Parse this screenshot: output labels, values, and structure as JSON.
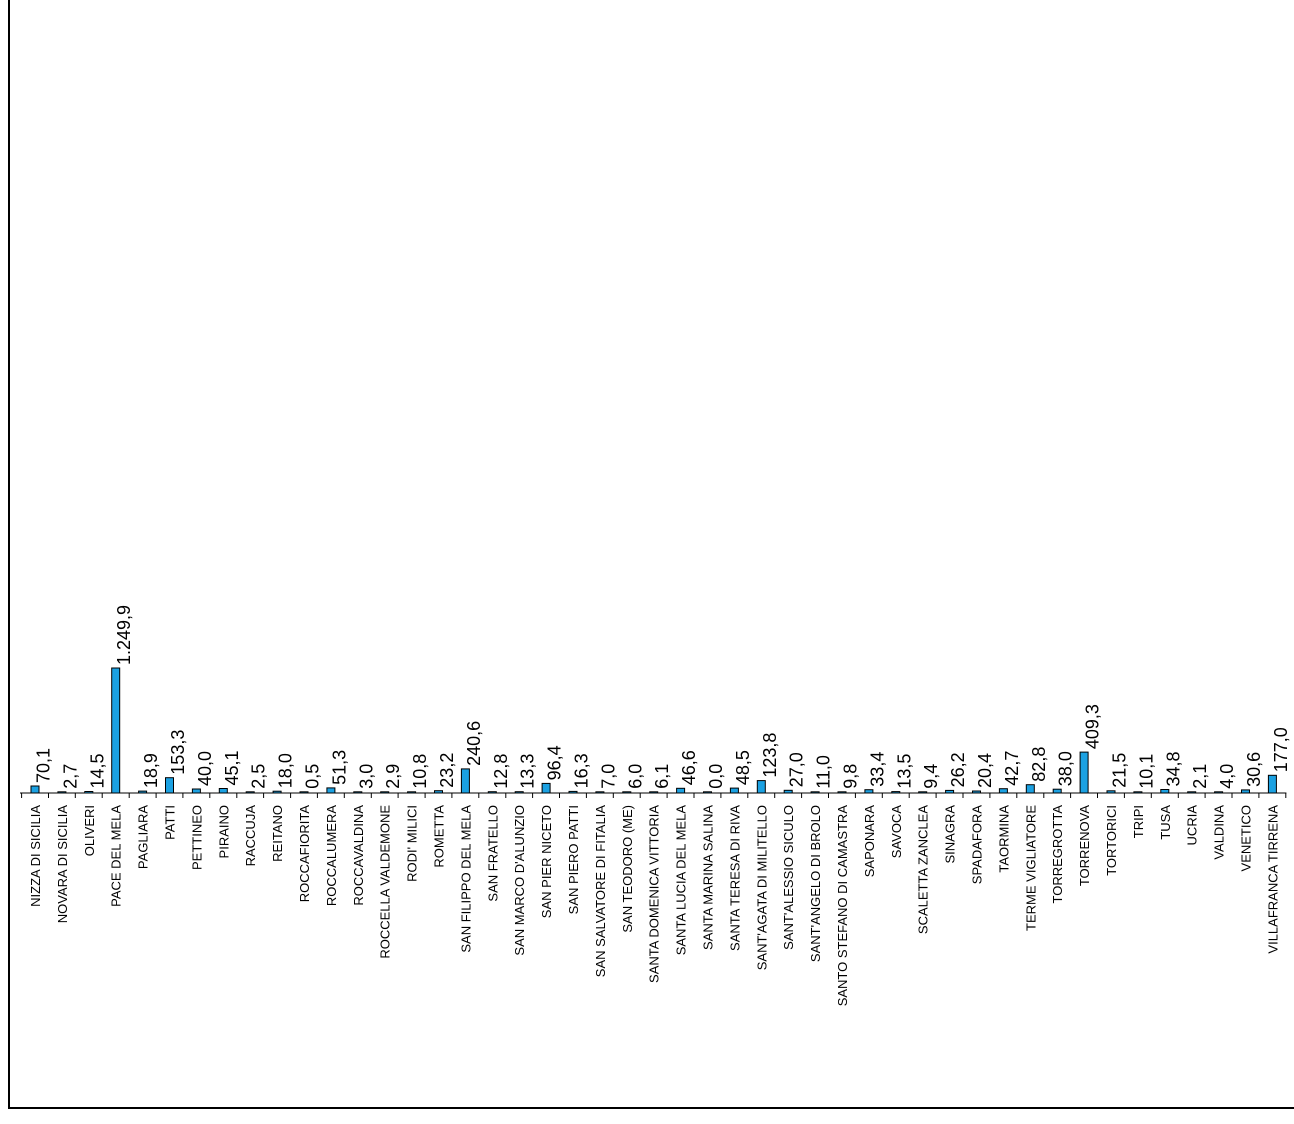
{
  "chart_data": {
    "type": "bar",
    "bar_color": "#1ba1e2",
    "bar_stroke": "#000000",
    "grid": false,
    "legend": "none",
    "ylim": [
      0,
      1400
    ],
    "categories": [
      "NIZZA DI SICILIA",
      "NOVARA DI SICILIA",
      "OLIVERI",
      "PACE DEL MELA",
      "PAGLIARA",
      "PATTI",
      "PETTINEO",
      "PIRAINO",
      "RACCUJA",
      "REITANO",
      "ROCCAFIORITA",
      "ROCCALUMERA",
      "ROCCAVALDINA",
      "ROCCELLA VALDEMONE",
      "RODI' MILICI",
      "ROMETTA",
      "SAN FILIPPO DEL MELA",
      "SAN FRATELLO",
      "SAN MARCO D'ALUNZIO",
      "SAN PIER NICETO",
      "SAN PIERO PATTI",
      "SAN SALVATORE DI FITALIA",
      "SAN TEODORO (ME)",
      "SANTA DOMENICA VITTORIA",
      "SANTA LUCIA DEL MELA",
      "SANTA MARINA SALINA",
      "SANTA TERESA DI RIVA",
      "SANT'AGATA DI MILITELLO",
      "SANT'ALESSIO SICULO",
      "SANT'ANGELO DI BROLO",
      "SANTO STEFANO DI CAMASTRA",
      "SAPONARA",
      "SAVOCA",
      "SCALETTA ZANCLEA",
      "SINAGRA",
      "SPADAFORA",
      "TAORMINA",
      "TERME VIGLIATORE",
      "TORREGROTTA",
      "TORRENOVA",
      "TORTORICI",
      "TRIPI",
      "TUSA",
      "UCRIA",
      "VALDINA",
      "VENETICO",
      "VILLAFRANCA TIRRENA"
    ],
    "values": [
      70.1,
      2.7,
      14.5,
      1249.9,
      18.9,
      153.3,
      40.0,
      45.1,
      2.5,
      18.0,
      0.5,
      51.3,
      3.0,
      2.9,
      10.8,
      23.2,
      240.6,
      12.8,
      13.3,
      96.4,
      16.3,
      7.0,
      6.0,
      6.1,
      46.6,
      0.0,
      48.5,
      123.8,
      27.0,
      11.0,
      9.8,
      33.4,
      13.5,
      9.4,
      26.2,
      20.4,
      42.7,
      82.8,
      38.0,
      409.3,
      21.5,
      10.1,
      34.8,
      2.1,
      4.0,
      30.6,
      177.0
    ],
    "value_labels": [
      "70,1",
      "2,7",
      "14,5",
      "1.249,9",
      "18,9",
      "153,3",
      "40,0",
      "45,1",
      "2,5",
      "18,0",
      "0,5",
      "51,3",
      "3,0",
      "2,9",
      "10,8",
      "23,2",
      "240,6",
      "12,8",
      "13,3",
      "96,4",
      "16,3",
      "7,0",
      "6,0",
      "6,1",
      "46,6",
      "0,0",
      "48,5",
      "123,8",
      "27,0",
      "11,0",
      "9,8",
      "33,4",
      "13,5",
      "9,4",
      "26,2",
      "20,4",
      "42,7",
      "82,8",
      "38,0",
      "409,3",
      "21,5",
      "10,1",
      "34,8",
      "2,1",
      "4,0",
      "30,6",
      "177,0"
    ]
  }
}
